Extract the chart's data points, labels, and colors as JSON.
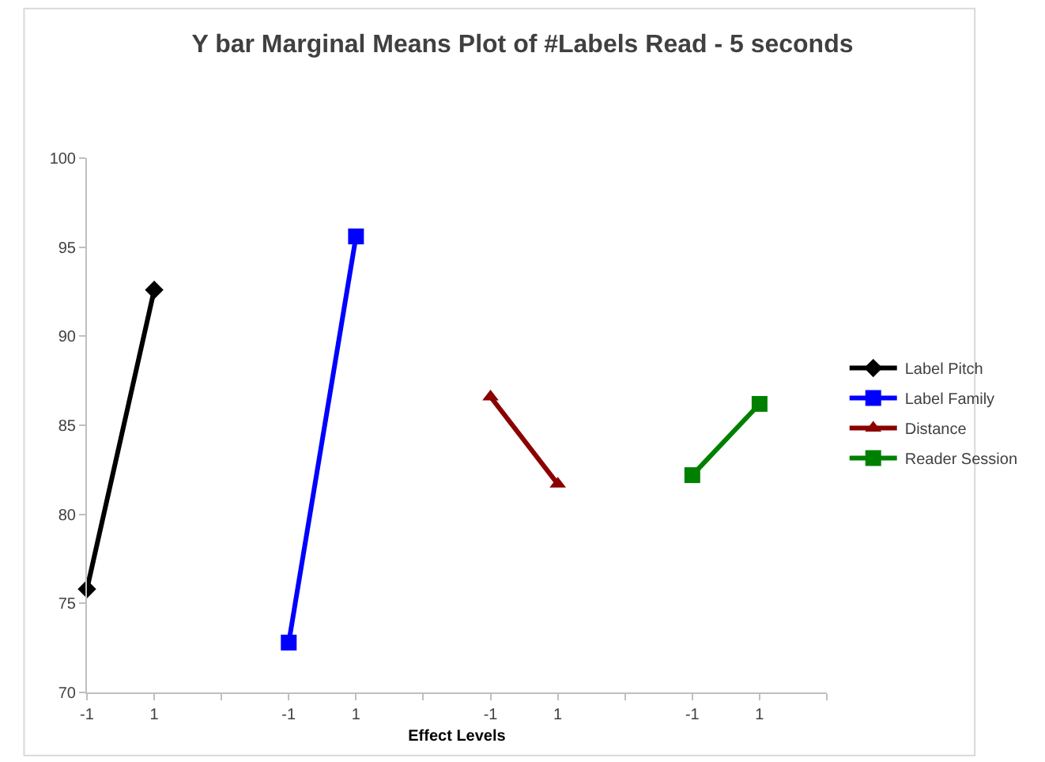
{
  "chart_data": {
    "type": "line",
    "title": "Y bar Marginal Means Plot of #Labels Read - 5 seconds",
    "xlabel": "Effect Levels",
    "categories": [
      "-1",
      "1",
      null,
      "-1",
      "1",
      null,
      "-1",
      "1",
      null,
      "-1",
      "1",
      null
    ],
    "series": [
      {
        "name": "Label Pitch",
        "color": "#000000",
        "marker": "diamond",
        "values": [
          75.8,
          92.6,
          null,
          null,
          null,
          null,
          null,
          null,
          null,
          null,
          null,
          null
        ]
      },
      {
        "name": "Label Family",
        "color": "#0000ff",
        "marker": "square",
        "values": [
          null,
          null,
          null,
          72.8,
          95.6,
          null,
          null,
          null,
          null,
          null,
          null,
          null
        ]
      },
      {
        "name": "Distance",
        "color": "#8b0000",
        "marker": "triangle",
        "values": [
          null,
          null,
          null,
          null,
          null,
          null,
          86.6,
          81.7,
          null,
          null,
          null,
          null
        ]
      },
      {
        "name": "Reader Session",
        "color": "#008000",
        "marker": "square",
        "values": [
          null,
          null,
          null,
          null,
          null,
          null,
          null,
          null,
          null,
          82.2,
          86.2,
          null
        ]
      }
    ],
    "ylim": [
      70,
      100
    ],
    "yticks": [
      70,
      75,
      80,
      85,
      90,
      95,
      100
    ],
    "legend": "right",
    "line_style": "solid"
  }
}
